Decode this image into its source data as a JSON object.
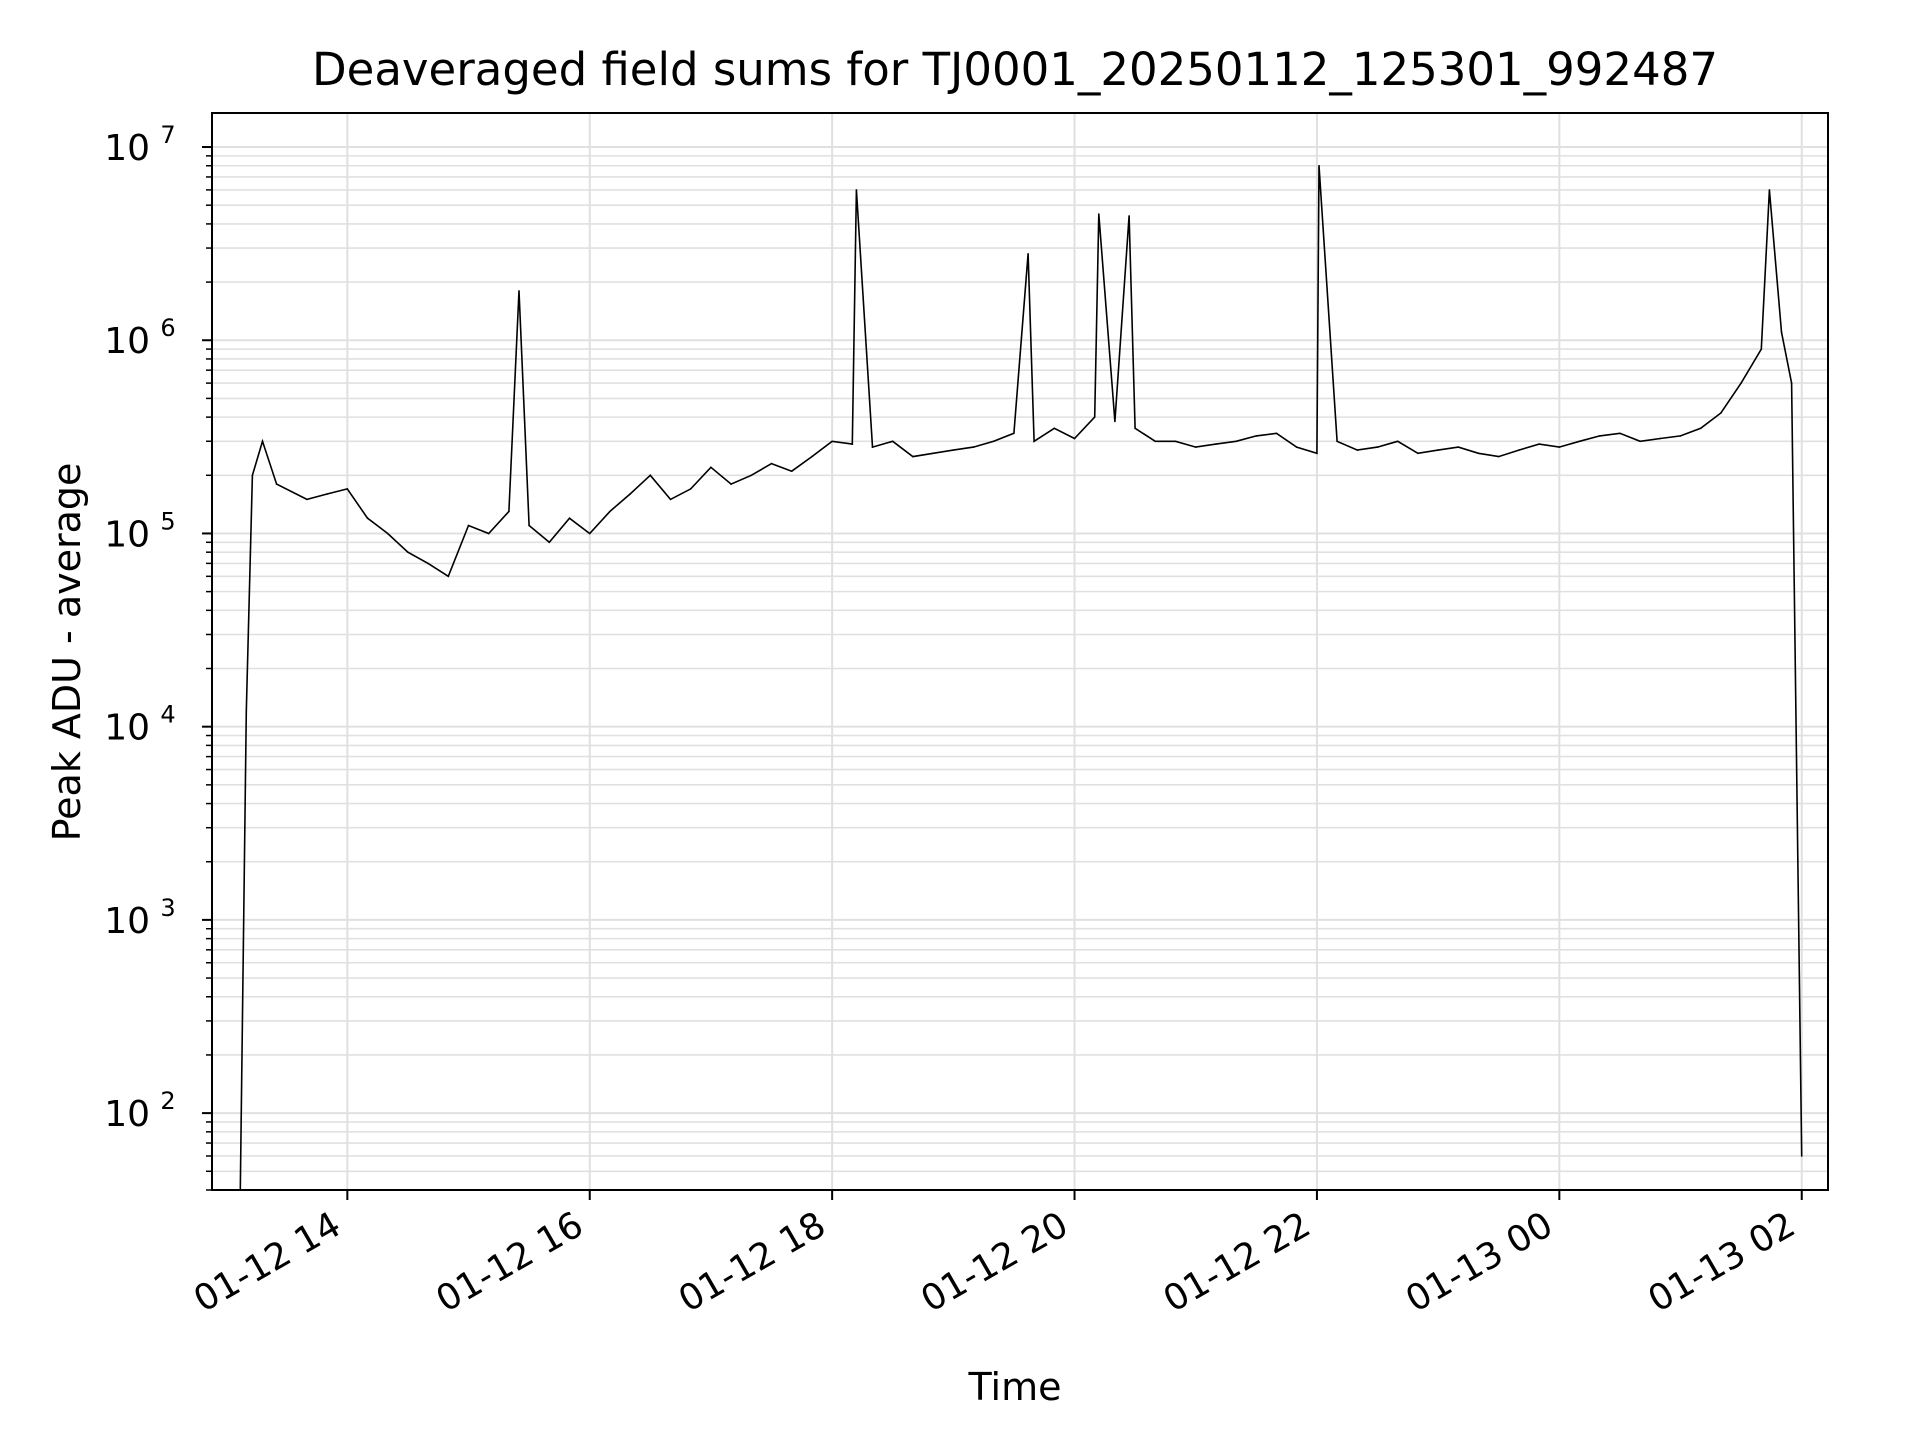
{
  "chart_data": {
    "type": "line",
    "title": "Deaveraged field sums for TJ0001_20250112_125301_992487",
    "xlabel": "Time",
    "ylabel": "Peak ADU - average",
    "yscale": "log",
    "ylim": [
      40,
      15000000
    ],
    "xlim": [
      "01-12 12:53",
      "01-13 02:13"
    ],
    "grid": true,
    "line_color": "#000000",
    "grid_color": "#e0e0e0",
    "x_ticks": [
      {
        "label": "01-12 14",
        "time": "01-12 14:00"
      },
      {
        "label": "01-12 16",
        "time": "01-12 16:00"
      },
      {
        "label": "01-12 18",
        "time": "01-12 18:00"
      },
      {
        "label": "01-12 20",
        "time": "01-12 20:00"
      },
      {
        "label": "01-12 22",
        "time": "01-12 22:00"
      },
      {
        "label": "01-13 00",
        "time": "01-13 00:00"
      },
      {
        "label": "01-13 02",
        "time": "01-13 02:00"
      }
    ],
    "y_ticks": [
      {
        "base": "10",
        "exp": "2",
        "value": 100
      },
      {
        "base": "10",
        "exp": "3",
        "value": 1000
      },
      {
        "base": "10",
        "exp": "4",
        "value": 10000
      },
      {
        "base": "10",
        "exp": "5",
        "value": 100000
      },
      {
        "base": "10",
        "exp": "6",
        "value": 1000000
      },
      {
        "base": "10",
        "exp": "7",
        "value": 10000000
      }
    ],
    "series": [
      {
        "x": [
          "01-12 13:07",
          "01-12 13:10",
          "01-12 13:13",
          "01-12 13:18",
          "01-12 13:25",
          "01-12 13:40",
          "01-12 13:50",
          "01-12 14:00",
          "01-12 14:10",
          "01-12 14:20",
          "01-12 14:30",
          "01-12 14:40",
          "01-12 14:50",
          "01-12 15:00",
          "01-12 15:10",
          "01-12 15:20",
          "01-12 15:25",
          "01-12 15:30",
          "01-12 15:40",
          "01-12 15:50",
          "01-12 16:00",
          "01-12 16:10",
          "01-12 16:20",
          "01-12 16:30",
          "01-12 16:40",
          "01-12 16:50",
          "01-12 17:00",
          "01-12 17:10",
          "01-12 17:20",
          "01-12 17:30",
          "01-12 17:40",
          "01-12 17:50",
          "01-12 18:00",
          "01-12 18:10",
          "01-12 18:12",
          "01-12 18:20",
          "01-12 18:30",
          "01-12 18:40",
          "01-12 18:50",
          "01-12 19:00",
          "01-12 19:10",
          "01-12 19:20",
          "01-12 19:30",
          "01-12 19:37",
          "01-12 19:40",
          "01-12 19:50",
          "01-12 20:00",
          "01-12 20:10",
          "01-12 20:12",
          "01-12 20:20",
          "01-12 20:27",
          "01-12 20:30",
          "01-12 20:40",
          "01-12 20:50",
          "01-12 21:00",
          "01-12 21:10",
          "01-12 21:20",
          "01-12 21:30",
          "01-12 21:40",
          "01-12 21:50",
          "01-12 22:00",
          "01-12 22:01",
          "01-12 22:10",
          "01-12 22:20",
          "01-12 22:30",
          "01-12 22:40",
          "01-12 22:50",
          "01-12 23:00",
          "01-12 23:10",
          "01-12 23:20",
          "01-12 23:30",
          "01-12 23:40",
          "01-12 23:50",
          "01-13 00:00",
          "01-13 00:10",
          "01-13 00:20",
          "01-13 00:30",
          "01-13 00:40",
          "01-13 00:50",
          "01-13 01:00",
          "01-13 01:10",
          "01-13 01:20",
          "01-13 01:30",
          "01-13 01:40",
          "01-13 01:44",
          "01-13 01:50",
          "01-13 01:55",
          "01-13 02:00"
        ],
        "y": [
          40,
          12000,
          200000,
          300000,
          180000,
          150000,
          160000,
          170000,
          120000,
          100000,
          80000,
          70000,
          60000,
          110000,
          100000,
          130000,
          1800000,
          110000,
          90000,
          120000,
          100000,
          130000,
          160000,
          200000,
          150000,
          170000,
          220000,
          180000,
          200000,
          230000,
          210000,
          250000,
          300000,
          290000,
          6000000,
          280000,
          300000,
          250000,
          260000,
          270000,
          280000,
          300000,
          330000,
          2800000,
          300000,
          350000,
          310000,
          400000,
          4500000,
          380000,
          4400000,
          350000,
          300000,
          300000,
          280000,
          290000,
          300000,
          320000,
          330000,
          280000,
          260000,
          8000000,
          300000,
          270000,
          280000,
          300000,
          260000,
          270000,
          280000,
          260000,
          250000,
          270000,
          290000,
          280000,
          300000,
          320000,
          330000,
          300000,
          310000,
          320000,
          350000,
          420000,
          600000,
          900000,
          6000000,
          1100000,
          600000,
          60
        ]
      }
    ]
  }
}
